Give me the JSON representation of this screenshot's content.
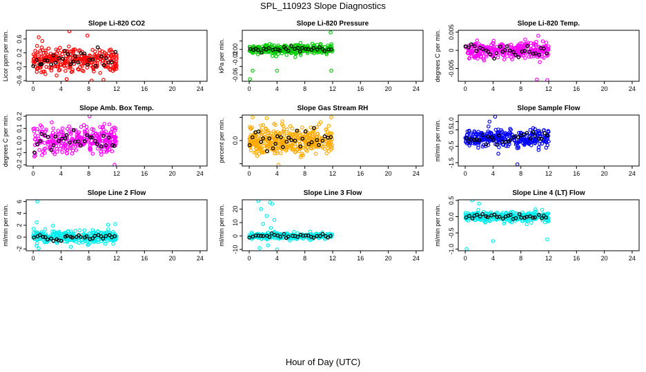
{
  "title": "SPL_110923  Slope Diagnostics",
  "x_caption": "Hour of Day (UTC)",
  "chart_data": [
    {
      "type": "scatter",
      "title": "Slope Li-820 CO2",
      "ylabel": "Licor ppm per min.",
      "color": "#ff0000",
      "xlim": [
        -1,
        25
      ],
      "ylim": [
        -0.62,
        0.85
      ],
      "x_ticks": [
        0,
        4,
        8,
        12,
        16,
        20,
        24
      ],
      "y_ticks": [
        -0.6,
        -0.2,
        0.2,
        0.6
      ],
      "y_tick_labels": [
        "-0.6",
        "-0.2",
        "0.2",
        "0.6"
      ],
      "n_points": 300,
      "x_range": [
        0,
        12
      ],
      "spread": 0.22,
      "outliers": [
        [
          5.2,
          0.82
        ],
        [
          8.4,
          -0.6
        ],
        [
          0.8,
          0.65
        ],
        [
          7.8,
          0.7
        ]
      ]
    },
    {
      "type": "scatter",
      "title": "Slope Li-820 Pressure",
      "ylabel": "kPa per min.",
      "color": "#00cc00",
      "xlim": [
        -1,
        25
      ],
      "ylim": [
        -0.075,
        0.045
      ],
      "x_ticks": [
        0,
        4,
        8,
        12,
        16,
        20,
        24
      ],
      "y_ticks": [
        -0.06,
        -0.04,
        -0.02,
        0.0,
        0.02
      ],
      "y_tick_labels": [
        "-0.06",
        "",
        "-0.02",
        "0.00",
        ""
      ],
      "n_points": 300,
      "x_range": [
        0,
        12
      ],
      "spread": 0.008,
      "outliers": [
        [
          0.1,
          -0.07
        ],
        [
          0.5,
          -0.05
        ],
        [
          4.0,
          -0.05
        ],
        [
          11.8,
          -0.05
        ],
        [
          11.7,
          0.04
        ]
      ]
    },
    {
      "type": "scatter",
      "title": "Slope Li-820 Temp.",
      "ylabel": "degrees C per min.",
      "color": "#ff00ff",
      "xlim": [
        -1,
        25
      ],
      "ylim": [
        -0.0085,
        0.0055
      ],
      "x_ticks": [
        0,
        4,
        8,
        12,
        16,
        20,
        24
      ],
      "y_ticks": [
        -0.005,
        0.0,
        0.005
      ],
      "y_tick_labels": [
        "-0.005",
        "0",
        "0.005"
      ],
      "n_points": 300,
      "x_range": [
        0,
        12
      ],
      "spread": 0.0015,
      "outliers": [
        [
          10.3,
          -0.008
        ],
        [
          11.8,
          -0.0082
        ],
        [
          10.5,
          0.004
        ]
      ]
    },
    {
      "type": "scatter",
      "title": "Slope Amb. Box Temp.",
      "ylabel": "degrees C per min.",
      "color": "#ff00ff",
      "xlim": [
        -1,
        25
      ],
      "ylim": [
        -0.21,
        0.21
      ],
      "x_ticks": [
        0,
        4,
        8,
        12,
        16,
        20,
        24
      ],
      "y_ticks": [
        -0.2,
        -0.1,
        0.0,
        0.1,
        0.2
      ],
      "y_tick_labels": [
        "-0.2",
        "-0.1",
        "0.0",
        "0.1",
        "0.2"
      ],
      "n_points": 300,
      "x_range": [
        0,
        12
      ],
      "spread": 0.075,
      "outliers": [
        [
          8.1,
          0.2
        ],
        [
          11.7,
          -0.2
        ]
      ]
    },
    {
      "type": "scatter",
      "title": "Slope Gas Stream RH",
      "ylabel": "percent per min.",
      "color": "#ffaa00",
      "xlim": [
        -1,
        25
      ],
      "ylim": [
        -0.22,
        0.22
      ],
      "x_ticks": [
        0,
        4,
        8,
        12,
        16,
        20,
        24
      ],
      "y_ticks": [
        -0.2,
        0.0,
        0.2
      ],
      "y_tick_labels": [
        "",
        "0.0",
        ""
      ],
      "n_points": 400,
      "x_range": [
        0,
        12
      ],
      "spread": 0.08,
      "outliers": [
        [
          4.2,
          -0.21
        ],
        [
          0.5,
          0.2
        ],
        [
          11.8,
          0.2
        ]
      ]
    },
    {
      "type": "scatter",
      "title": "Slope Sample Flow",
      "ylabel": "ml/min per min.",
      "color": "#0000ff",
      "xlim": [
        -1,
        25
      ],
      "ylim": [
        -1.7,
        1.4
      ],
      "x_ticks": [
        0,
        4,
        8,
        12,
        16,
        20,
        24
      ],
      "y_ticks": [
        -1.5,
        -0.5,
        0.5,
        1.0
      ],
      "y_tick_labels": [
        "-1.5",
        "-0.5",
        "0.5",
        "1.0"
      ],
      "n_points": 300,
      "x_range": [
        0,
        12
      ],
      "spread": 0.35,
      "outliers": [
        [
          4.3,
          1.3
        ],
        [
          7.5,
          -1.6
        ],
        [
          3.5,
          1.0
        ]
      ]
    },
    {
      "type": "scatter",
      "title": "Slope Line 2 Flow",
      "ylabel": "ml/min per min.",
      "color": "#00eeee",
      "xlim": [
        -1,
        25
      ],
      "ylim": [
        -2.3,
        6.3
      ],
      "x_ticks": [
        0,
        4,
        8,
        12,
        16,
        20,
        24
      ],
      "y_ticks": [
        -2,
        0,
        2,
        4,
        6
      ],
      "y_tick_labels": [
        "-2",
        "0",
        "2",
        "4",
        "6"
      ],
      "n_points": 300,
      "x_range": [
        0,
        12
      ],
      "spread": 0.7,
      "outliers": [
        [
          0.6,
          6.0
        ],
        [
          0.8,
          -1.9
        ],
        [
          11.8,
          2.2
        ],
        [
          0.5,
          2.5
        ]
      ]
    },
    {
      "type": "scatter",
      "title": "Slope Line 3 Flow",
      "ylabel": "ml/min per min.",
      "color": "#00eeee",
      "xlim": [
        -1,
        25
      ],
      "ylim": [
        -11,
        27
      ],
      "x_ticks": [
        0,
        4,
        8,
        12,
        16,
        20,
        24
      ],
      "y_ticks": [
        -10,
        0,
        10,
        20
      ],
      "y_tick_labels": [
        "-10",
        "0",
        "10",
        "20"
      ],
      "n_points": 250,
      "x_range": [
        0,
        12
      ],
      "spread": 1.5,
      "outliers": [
        [
          1.3,
          26
        ],
        [
          3.0,
          25
        ],
        [
          3.3,
          24
        ],
        [
          1.7,
          20
        ],
        [
          2.5,
          15
        ],
        [
          3.6,
          12
        ],
        [
          2.0,
          9
        ],
        [
          1.5,
          -9
        ],
        [
          2.7,
          -7
        ],
        [
          4.0,
          -10
        ],
        [
          3.1,
          6
        ]
      ]
    },
    {
      "type": "scatter",
      "title": "Slope Line 4 (LT) Flow",
      "ylabel": "ml/min per min.",
      "color": "#00eeee",
      "xlim": [
        -1,
        25
      ],
      "ylim": [
        -1.05,
        0.52
      ],
      "x_ticks": [
        0,
        4,
        8,
        12,
        16,
        20,
        24
      ],
      "y_ticks": [
        -1.0,
        -0.5,
        0.0,
        0.5
      ],
      "y_tick_labels": [
        "-1.0",
        "-0.5",
        "0.0",
        "0.5"
      ],
      "n_points": 300,
      "x_range": [
        0,
        12
      ],
      "spread": 0.1,
      "outliers": [
        [
          0.2,
          -1.0
        ],
        [
          4.0,
          -0.75
        ],
        [
          11.8,
          -0.7
        ],
        [
          1.0,
          0.5
        ],
        [
          2.0,
          0.4
        ]
      ]
    }
  ]
}
